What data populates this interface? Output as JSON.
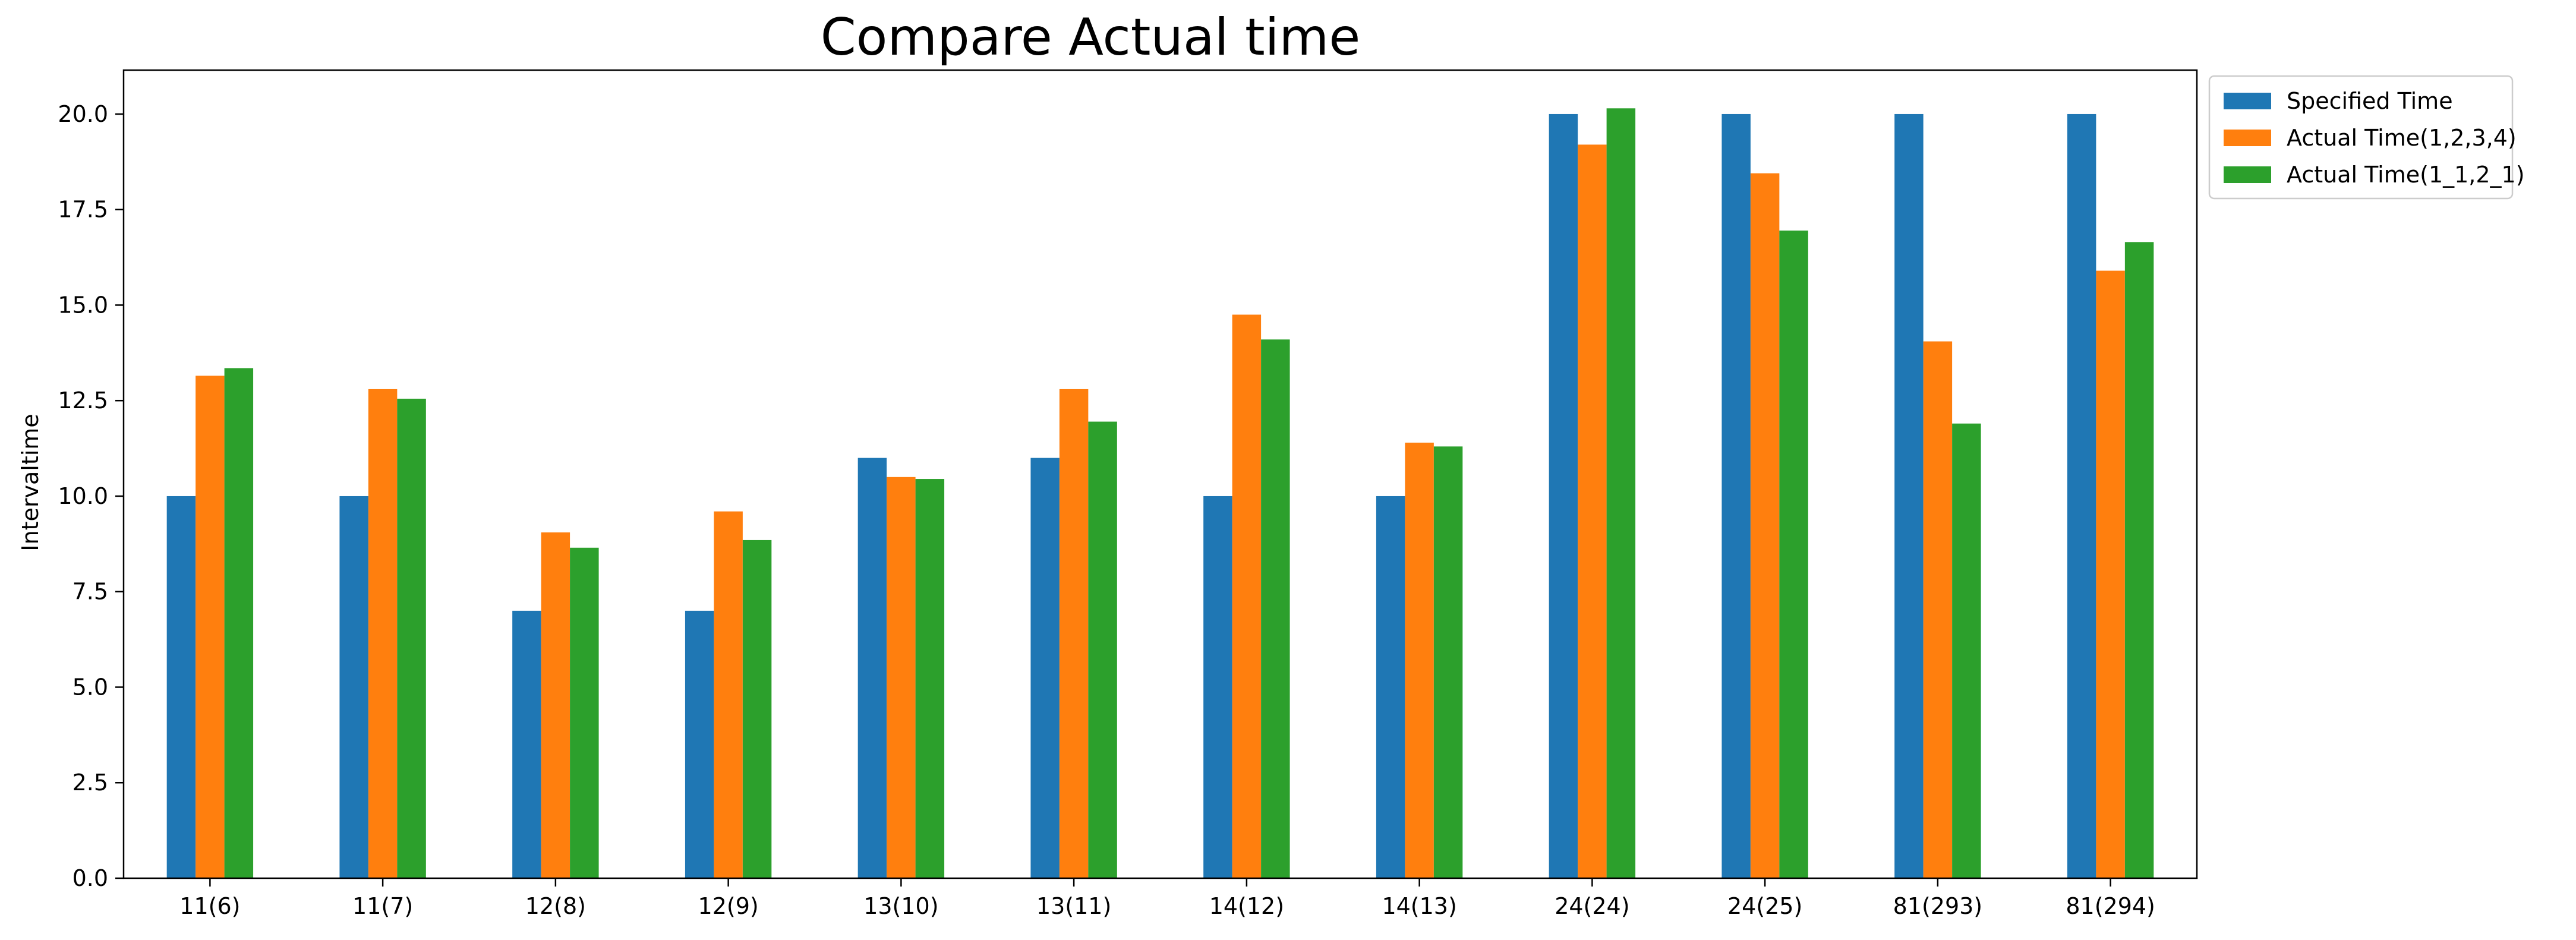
{
  "chart_data": {
    "type": "bar",
    "title": "Compare Actual time",
    "xlabel": "",
    "ylabel": "Intervaltime",
    "categories": [
      "11(6)",
      "11(7)",
      "12(8)",
      "12(9)",
      "13(10)",
      "13(11)",
      "14(12)",
      "14(13)",
      "24(24)",
      "24(25)",
      "81(293)",
      "81(294)"
    ],
    "series": [
      {
        "name": "Specified Time",
        "color": "#1f77b4",
        "values": [
          10,
          10,
          7,
          7,
          11,
          11,
          10,
          10,
          20,
          20,
          20,
          20
        ]
      },
      {
        "name": "Actual Time(1,2,3,4)",
        "color": "#ff7f0e",
        "values": [
          13.15,
          12.8,
          9.05,
          9.6,
          10.5,
          12.8,
          14.75,
          11.4,
          19.2,
          18.45,
          14.05,
          15.9
        ]
      },
      {
        "name": "Actual Time(1_1,2_1)",
        "color": "#2ca02c",
        "values": [
          13.35,
          12.55,
          8.65,
          8.85,
          10.45,
          11.95,
          14.1,
          11.3,
          20.15,
          16.95,
          11.9,
          16.65
        ]
      }
    ],
    "ylim": [
      0,
      21.15
    ],
    "yticks": [
      "0.0",
      "2.5",
      "5.0",
      "7.5",
      "10.0",
      "12.5",
      "15.0",
      "17.5",
      "20.0"
    ],
    "grid": false,
    "legend": "outside-top-right"
  }
}
